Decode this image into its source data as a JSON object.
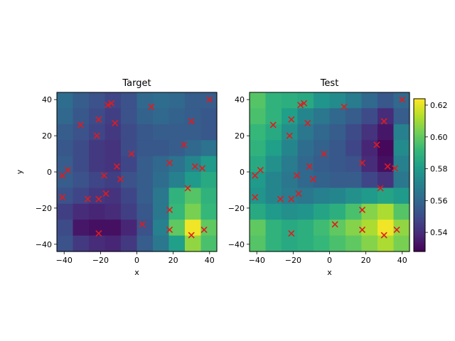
{
  "chart_data": [
    {
      "type": "heatmap",
      "title": "Target",
      "xlabel": "x",
      "ylabel": "y",
      "xlim": [
        -44,
        44
      ],
      "ylim": [
        -44,
        44
      ],
      "xticks": [
        -40,
        -20,
        0,
        20,
        40
      ],
      "yticks": [
        -40,
        -20,
        0,
        20,
        40
      ],
      "grid": {
        "x_edges": [
          -44,
          -35.2,
          -26.4,
          -17.6,
          -8.8,
          0,
          8.8,
          17.6,
          26.4,
          35.2,
          44
        ],
        "y_edges_top_to_bottom": [
          44,
          35.2,
          26.4,
          17.6,
          8.8,
          0,
          -8.8,
          -17.6,
          -26.4,
          -35.2,
          -44
        ],
        "values_rows_top_to_bottom": [
          [
            0.562,
            0.556,
            0.552,
            0.548,
            0.552,
            0.56,
            0.562,
            0.56,
            0.556,
            0.556
          ],
          [
            0.56,
            0.554,
            0.55,
            0.546,
            0.552,
            0.558,
            0.56,
            0.558,
            0.556,
            0.554
          ],
          [
            0.556,
            0.552,
            0.548,
            0.544,
            0.55,
            0.554,
            0.556,
            0.556,
            0.556,
            0.554
          ],
          [
            0.554,
            0.55,
            0.544,
            0.542,
            0.55,
            0.554,
            0.554,
            0.556,
            0.56,
            0.564
          ],
          [
            0.556,
            0.55,
            0.544,
            0.542,
            0.548,
            0.556,
            0.56,
            0.564,
            0.572,
            0.58
          ],
          [
            0.556,
            0.552,
            0.548,
            0.546,
            0.552,
            0.556,
            0.562,
            0.57,
            0.58,
            0.586
          ],
          [
            0.552,
            0.548,
            0.544,
            0.542,
            0.548,
            0.556,
            0.566,
            0.59,
            0.598,
            0.59
          ],
          [
            0.546,
            0.54,
            0.538,
            0.54,
            0.546,
            0.554,
            0.566,
            0.592,
            0.604,
            0.592
          ],
          [
            0.55,
            0.534,
            0.532,
            0.532,
            0.538,
            0.552,
            0.57,
            0.6,
            0.622,
            0.6
          ],
          [
            0.552,
            0.544,
            0.54,
            0.538,
            0.544,
            0.556,
            0.566,
            0.582,
            0.608,
            0.596
          ]
        ]
      },
      "points": [
        {
          "x": -41,
          "y": -2
        },
        {
          "x": -38,
          "y": 1
        },
        {
          "x": -41,
          "y": -14
        },
        {
          "x": -31,
          "y": 26
        },
        {
          "x": -27,
          "y": -15
        },
        {
          "x": -21,
          "y": -15
        },
        {
          "x": -21,
          "y": 29
        },
        {
          "x": -22,
          "y": 20
        },
        {
          "x": -18,
          "y": -2
        },
        {
          "x": -17,
          "y": -12
        },
        {
          "x": -16,
          "y": 37
        },
        {
          "x": -14,
          "y": 38
        },
        {
          "x": -12,
          "y": 27
        },
        {
          "x": -11,
          "y": 3
        },
        {
          "x": -9,
          "y": -4
        },
        {
          "x": -3,
          "y": 10
        },
        {
          "x": 3,
          "y": -29
        },
        {
          "x": 8,
          "y": 36
        },
        {
          "x": -21,
          "y": -34
        },
        {
          "x": 18,
          "y": 5
        },
        {
          "x": 18,
          "y": -21
        },
        {
          "x": 18,
          "y": -32
        },
        {
          "x": 26,
          "y": 15
        },
        {
          "x": 28,
          "y": -9
        },
        {
          "x": 30,
          "y": 28
        },
        {
          "x": 32,
          "y": 3
        },
        {
          "x": 36,
          "y": 2
        },
        {
          "x": 40,
          "y": 40
        },
        {
          "x": 37,
          "y": -32
        },
        {
          "x": 30,
          "y": -35
        }
      ]
    },
    {
      "type": "heatmap",
      "title": "Test",
      "xlabel": "x",
      "ylabel": "",
      "xlim": [
        -44,
        44
      ],
      "ylim": [
        -44,
        44
      ],
      "xticks": [
        -40,
        -20,
        0,
        20,
        40
      ],
      "yticks": [
        -40,
        -20,
        0,
        20,
        40
      ],
      "grid": {
        "x_edges": [
          -44,
          -35.2,
          -26.4,
          -17.6,
          -8.8,
          0,
          8.8,
          17.6,
          26.4,
          35.2,
          44
        ],
        "y_edges_top_to_bottom": [
          44,
          35.2,
          26.4,
          17.6,
          8.8,
          0,
          -8.8,
          -17.6,
          -26.4,
          -35.2,
          -44
        ],
        "values_rows_top_to_bottom": [
          [
            0.598,
            0.59,
            0.588,
            0.586,
            0.578,
            0.574,
            0.568,
            0.56,
            0.554,
            0.56
          ],
          [
            0.596,
            0.59,
            0.582,
            0.572,
            0.566,
            0.56,
            0.556,
            0.55,
            0.54,
            0.556
          ],
          [
            0.592,
            0.586,
            0.576,
            0.566,
            0.56,
            0.556,
            0.55,
            0.542,
            0.534,
            0.57
          ],
          [
            0.59,
            0.582,
            0.572,
            0.562,
            0.558,
            0.554,
            0.548,
            0.538,
            0.53,
            0.574
          ],
          [
            0.586,
            0.576,
            0.568,
            0.56,
            0.556,
            0.554,
            0.552,
            0.54,
            0.532,
            0.57
          ],
          [
            0.58,
            0.572,
            0.566,
            0.56,
            0.558,
            0.556,
            0.556,
            0.548,
            0.542,
            0.566
          ],
          [
            0.578,
            0.572,
            0.568,
            0.566,
            0.57,
            0.572,
            0.576,
            0.58,
            0.584,
            0.58
          ],
          [
            0.586,
            0.58,
            0.576,
            0.578,
            0.584,
            0.588,
            0.596,
            0.606,
            0.612,
            0.598
          ],
          [
            0.6,
            0.59,
            0.586,
            0.588,
            0.594,
            0.6,
            0.606,
            0.612,
            0.622,
            0.608
          ],
          [
            0.598,
            0.59,
            0.586,
            0.588,
            0.592,
            0.596,
            0.6,
            0.606,
            0.612,
            0.604
          ]
        ]
      },
      "points": [
        {
          "x": -41,
          "y": -2
        },
        {
          "x": -38,
          "y": 1
        },
        {
          "x": -41,
          "y": -14
        },
        {
          "x": -31,
          "y": 26
        },
        {
          "x": -27,
          "y": -15
        },
        {
          "x": -21,
          "y": -15
        },
        {
          "x": -21,
          "y": 29
        },
        {
          "x": -22,
          "y": 20
        },
        {
          "x": -18,
          "y": -2
        },
        {
          "x": -17,
          "y": -12
        },
        {
          "x": -16,
          "y": 37
        },
        {
          "x": -14,
          "y": 38
        },
        {
          "x": -12,
          "y": 27
        },
        {
          "x": -11,
          "y": 3
        },
        {
          "x": -9,
          "y": -4
        },
        {
          "x": -3,
          "y": 10
        },
        {
          "x": 3,
          "y": -29
        },
        {
          "x": 8,
          "y": 36
        },
        {
          "x": -21,
          "y": -34
        },
        {
          "x": 18,
          "y": 5
        },
        {
          "x": 18,
          "y": -21
        },
        {
          "x": 18,
          "y": -32
        },
        {
          "x": 26,
          "y": 15
        },
        {
          "x": 28,
          "y": -9
        },
        {
          "x": 30,
          "y": 28
        },
        {
          "x": 32,
          "y": 3
        },
        {
          "x": 36,
          "y": 2
        },
        {
          "x": 40,
          "y": 40
        },
        {
          "x": 37,
          "y": -32
        },
        {
          "x": 30,
          "y": -35
        }
      ]
    }
  ],
  "colorbar": {
    "colormap": "viridis",
    "range": [
      0.528,
      0.624
    ],
    "ticks": [
      "0.54",
      "0.56",
      "0.58",
      "0.60",
      "0.62"
    ]
  },
  "colors": {
    "marker": "#e41a1c"
  }
}
